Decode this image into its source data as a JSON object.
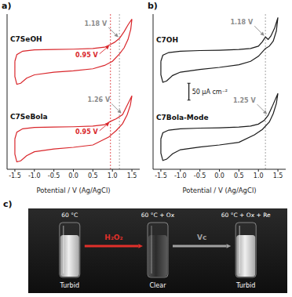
{
  "chart_data": [
    {
      "type": "line",
      "panel_label": "a)",
      "x_label": "Potential / V (Ag/AgCl)",
      "xlim": [
        -1.7,
        1.7
      ],
      "xticks": [
        -1.5,
        {
          "value": -1,
          "label": "-1.0"
        },
        -0.5,
        {
          "value": 0,
          "label": "0.0"
        },
        0.5,
        {
          "value": 1,
          "label": "1.0"
        },
        1.5
      ],
      "ylim": [
        -330,
        130
      ],
      "tick_labels": "x",
      "grid": false,
      "series": [
        {
          "name": "C7SeOH",
          "color": "#d9262b",
          "x": [
            -1.5,
            -1.45,
            -1.3,
            -1.0,
            -0.5,
            0,
            0.5,
            0.8,
            0.95,
            1.05,
            1.18,
            1.3,
            1.4,
            1.5,
            1.47,
            1.4,
            1.3,
            1.18,
            1.0,
            0.8,
            0.5,
            0,
            -0.5,
            -1.0,
            -1.2,
            -1.35,
            -1.45,
            -1.5,
            -1.5
          ],
          "values": [
            -10,
            10,
            20,
            24,
            25,
            26,
            28,
            32,
            40,
            46,
            58,
            78,
            98,
            115,
            85,
            55,
            30,
            12,
            -10,
            -22,
            -32,
            -38,
            -42,
            -50,
            -60,
            -75,
            -78,
            -55,
            -10
          ]
        },
        {
          "name": "C7SeBola",
          "color": "#d9262b",
          "x": [
            -1.5,
            -1.45,
            -1.3,
            -1.0,
            -0.5,
            0,
            0.5,
            0.8,
            0.95,
            1.1,
            1.26,
            1.38,
            1.5,
            1.46,
            1.38,
            1.26,
            1.1,
            0.9,
            0.5,
            0,
            -0.5,
            -1.0,
            -1.2,
            -1.35,
            -1.45,
            -1.5,
            -1.5
          ],
          "values": [
            -240,
            -220,
            -210,
            -206,
            -205,
            -204,
            -202,
            -198,
            -188,
            -180,
            -168,
            -140,
            -112,
            -140,
            -168,
            -195,
            -215,
            -235,
            -258,
            -265,
            -270,
            -278,
            -290,
            -305,
            -308,
            -285,
            -240
          ]
        }
      ],
      "vlines": [
        {
          "x": 0.95,
          "color": "#d9262b"
        },
        {
          "x": 1.18,
          "color": "#8c8c8c"
        }
      ],
      "annotations": [
        {
          "text": "1.18 V",
          "x": 1.18,
          "y": 58,
          "color": "#8c8c8c"
        },
        {
          "text": "0.95 V",
          "x": 0.95,
          "y": 40,
          "color": "#d9262b"
        },
        {
          "text": "1.26 V",
          "x": 1.26,
          "y": -168,
          "color": "#8c8c8c"
        },
        {
          "text": "0.95 V",
          "x": 0.95,
          "y": -188,
          "color": "#d9262b"
        }
      ]
    },
    {
      "type": "line",
      "panel_label": "b)",
      "x_label": "Potential / V (Ag/AgCl)",
      "xlim": [
        -1.7,
        1.7
      ],
      "xticks": [
        -1.5,
        {
          "value": -1,
          "label": "-1.0"
        },
        -0.5,
        {
          "value": 0,
          "label": "0.0"
        },
        0.5,
        {
          "value": 1,
          "label": "1.0"
        },
        1.5
      ],
      "ylim": [
        -330,
        130
      ],
      "tick_labels": "x",
      "grid": false,
      "scale_bar": {
        "value": 50,
        "label": "50 µA cm⁻²"
      },
      "series": [
        {
          "name": "C7OH",
          "color": "#1a1a1a",
          "x": [
            -1.5,
            -1.45,
            -1.3,
            -1.0,
            -0.5,
            0,
            0.5,
            0.8,
            1.0,
            1.1,
            1.18,
            1.25,
            1.32,
            1.42,
            1.5,
            1.46,
            1.38,
            1.28,
            1.18,
            1.0,
            0.8,
            0.5,
            0,
            -0.5,
            -1.0,
            -1.2,
            -1.35,
            -1.45,
            -1.5,
            -1.5
          ],
          "values": [
            -10,
            8,
            16,
            20,
            22,
            23,
            25,
            28,
            35,
            48,
            62,
            55,
            65,
            90,
            120,
            80,
            50,
            35,
            28,
            5,
            -10,
            -20,
            -28,
            -34,
            -42,
            -52,
            -68,
            -72,
            -50,
            -10
          ]
        },
        {
          "name": "C7Bola-Mode",
          "color": "#1a1a1a",
          "x": [
            -1.5,
            -1.45,
            -1.3,
            -1.0,
            -0.5,
            0,
            0.5,
            0.8,
            1.0,
            1.15,
            1.25,
            1.35,
            1.5,
            1.46,
            1.38,
            1.28,
            1.1,
            0.9,
            0.5,
            0,
            -0.5,
            -1.0,
            -1.2,
            -1.35,
            -1.45,
            -1.5,
            -1.5
          ],
          "values": [
            -240,
            -222,
            -214,
            -210,
            -208,
            -207,
            -205,
            -202,
            -196,
            -185,
            -170,
            -145,
            -105,
            -135,
            -165,
            -190,
            -212,
            -228,
            -250,
            -258,
            -264,
            -272,
            -284,
            -300,
            -304,
            -282,
            -240
          ]
        }
      ],
      "vlines": [
        {
          "x": 1.18,
          "color": "#8c8c8c"
        }
      ],
      "annotations": [
        {
          "text": "1.18 V",
          "x": 1.18,
          "y": 62,
          "color": "#8c8c8c"
        },
        {
          "text": "1.25 V",
          "x": 1.25,
          "y": -170,
          "color": "#8c8c8c"
        }
      ]
    }
  ],
  "panel_c": {
    "panel_label": "c)",
    "vials": [
      {
        "condition": "60 °C",
        "state": "Turbid",
        "appearance": "turbid"
      },
      {
        "condition": "60 °C + Ox",
        "state": "Clear",
        "appearance": "clear"
      },
      {
        "condition": "60 °C + Ox + Re",
        "state": "Turbid",
        "appearance": "turbid"
      }
    ],
    "steps": [
      {
        "label": "H₂O₂",
        "color": "#e0302a"
      },
      {
        "label": "Vc",
        "color": "#a0a0a0"
      }
    ]
  }
}
